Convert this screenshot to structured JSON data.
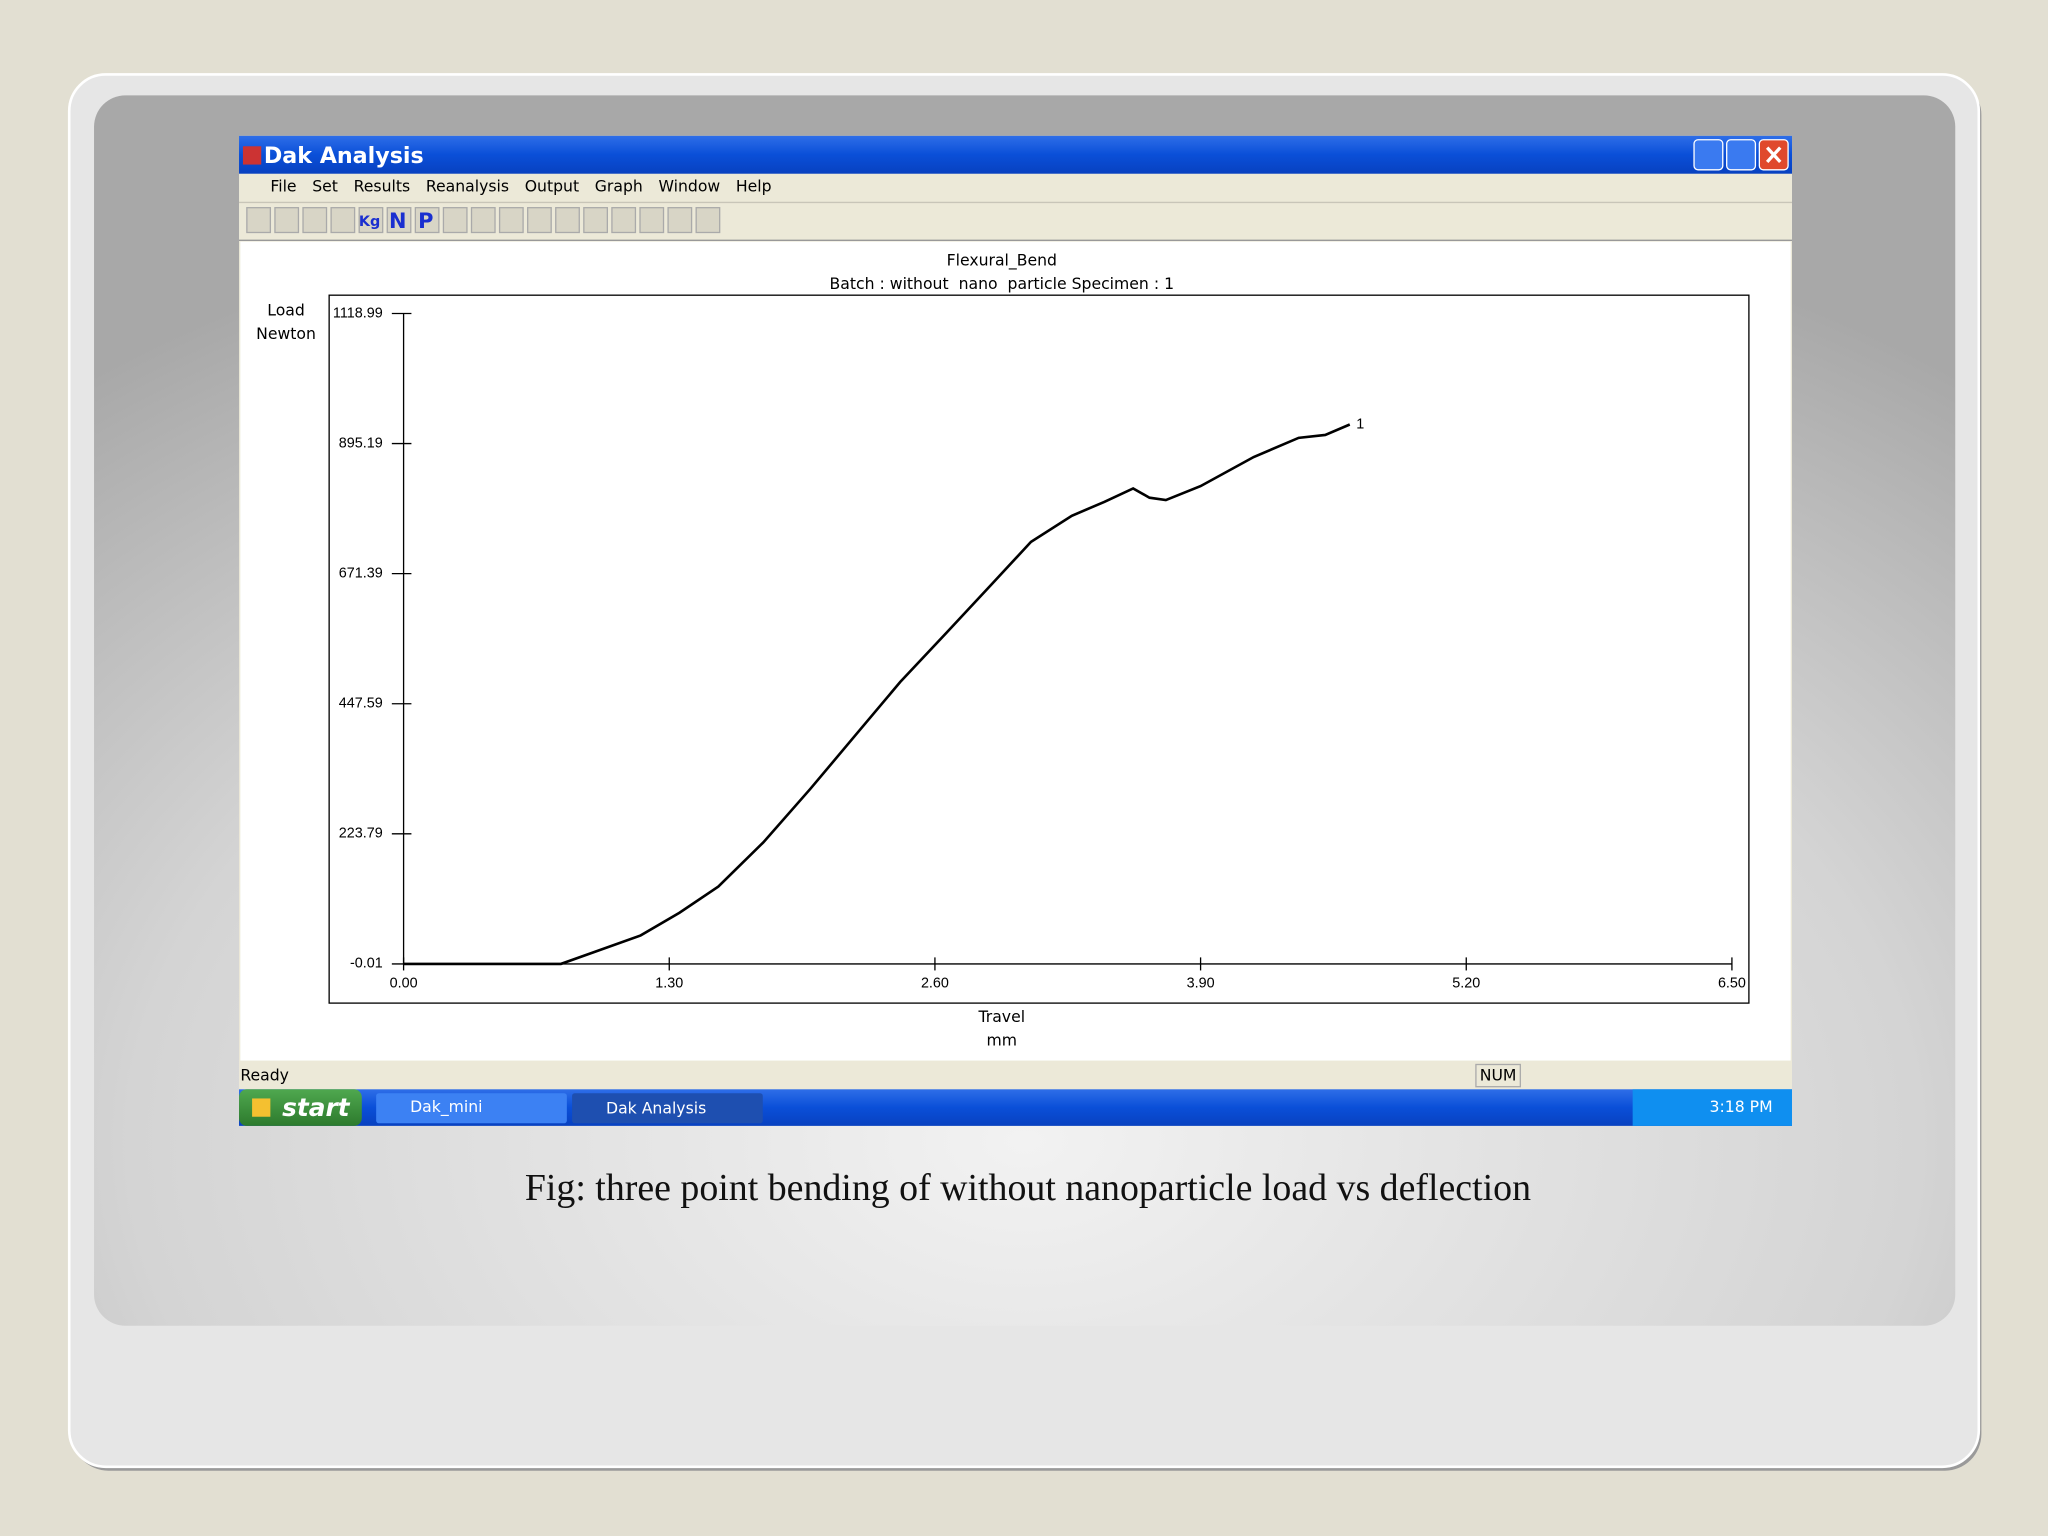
{
  "window": {
    "title": "Dak Analysis"
  },
  "menu": {
    "items": [
      "File",
      "Set",
      "Results",
      "Reanalysis",
      "Output",
      "Graph",
      "Window",
      "Help"
    ]
  },
  "toolbar": {
    "labels": [
      "Kg",
      "N",
      "P"
    ]
  },
  "chart_data": {
    "type": "line",
    "title": "Flexural_Bend",
    "subtitle": "Batch : without  nano  particle Specimen : 1",
    "ylabel": "Load",
    "ylabel_unit": "Newton",
    "xlabel": "Travel",
    "xlabel_unit": "mm",
    "x": [
      0,
      0.77,
      0.93,
      1.16,
      1.35,
      1.54,
      1.76,
      1.99,
      2.21,
      2.43,
      2.66,
      2.88,
      3.07,
      3.27,
      3.43,
      3.57,
      3.65,
      3.73,
      3.9,
      4.16,
      4.38,
      4.51,
      4.63
    ],
    "series": [
      {
        "name": "1",
        "color": "#000000",
        "values": [
          0,
          0,
          20,
          49,
          88,
          133,
          209,
          301,
          393,
          485,
          571,
          654,
          726,
          771,
          795,
          818,
          802,
          798,
          822,
          872,
          905,
          910,
          928
        ]
      }
    ],
    "xlim": [
      0,
      6.5
    ],
    "ylim": [
      -0.01,
      1118.99
    ],
    "xticks": [
      {
        "value": 0,
        "label": "0.00"
      },
      {
        "value": 1.3,
        "label": "1.30"
      },
      {
        "value": 2.6,
        "label": "2.60"
      },
      {
        "value": 3.9,
        "label": "3.90"
      },
      {
        "value": 5.2,
        "label": "5.20"
      },
      {
        "value": 6.5,
        "label": "6.50"
      }
    ],
    "yticks": [
      -0.01,
      223.79,
      447.59,
      671.39,
      895.19,
      1118.99
    ]
  },
  "status": {
    "text": "Ready",
    "num": "NUM"
  },
  "taskbar": {
    "start": "start",
    "items": [
      "Dak_mini",
      "Dak Analysis"
    ],
    "clock": "3:18 PM"
  },
  "caption": "Fig: three point bending of without nanoparticle load vs deflection"
}
